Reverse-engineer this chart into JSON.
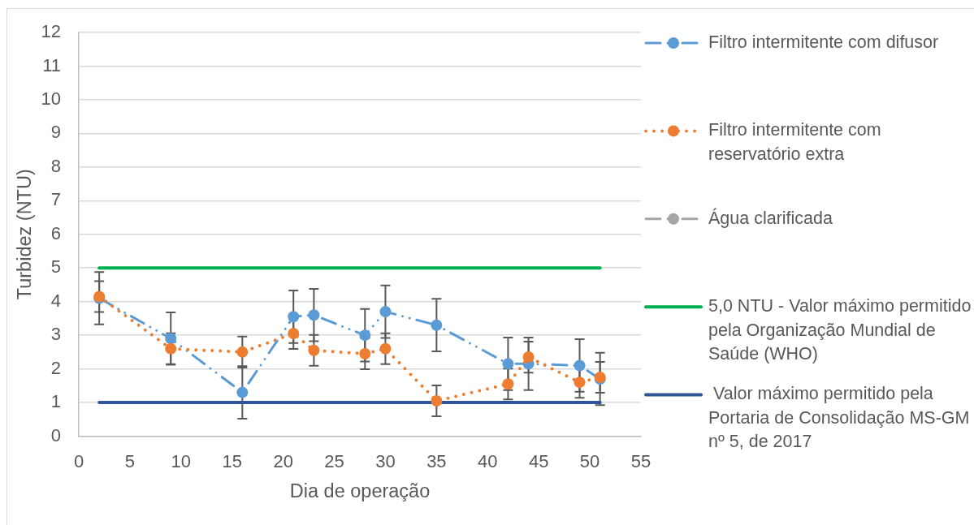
{
  "chart_data": {
    "type": "line",
    "xlabel": "Dia de operação",
    "ylabel": "Turbidez (NTU)",
    "x": [
      2,
      9,
      16,
      21,
      23,
      28,
      30,
      35,
      42,
      44,
      49,
      51
    ],
    "xlim": [
      0,
      55
    ],
    "xticks": [
      0,
      5,
      10,
      15,
      20,
      25,
      30,
      35,
      40,
      45,
      50,
      55
    ],
    "ylim": [
      0,
      12
    ],
    "yticks": [
      0,
      1,
      2,
      3,
      4,
      5,
      6,
      7,
      8,
      9,
      10,
      11,
      12
    ],
    "grid": "y",
    "legend": "right",
    "marker": "circle",
    "series": [
      {
        "name": "Filtro intermitente com difusor",
        "color": "#5b9bd5",
        "line_style": "dashed",
        "values": [
          4.1,
          2.9,
          1.3,
          3.55,
          3.6,
          3.0,
          3.7,
          3.3,
          2.15,
          2.15,
          2.1,
          1.7
        ],
        "errors": [
          0.78,
          0.78,
          0.78,
          0.78,
          0.78,
          0.78,
          0.78,
          0.78,
          0.78,
          0.78,
          0.78,
          0.78
        ]
      },
      {
        "name": "Filtro intermitente com reservatório extra",
        "color": "#ed7d31",
        "line_style": "dotted",
        "values": [
          4.15,
          2.6,
          2.5,
          3.05,
          2.55,
          2.45,
          2.6,
          1.05,
          1.55,
          2.35,
          1.6,
          1.75
        ],
        "errors": [
          0.46,
          0.46,
          0.46,
          0.46,
          0.46,
          0.46,
          0.46,
          0.46,
          0.46,
          0.46,
          0.46,
          0.46
        ]
      },
      {
        "name": "Água clarificada",
        "color": "#a5a5a5",
        "line_style": "dashed",
        "values": [
          null,
          null,
          null,
          null,
          null,
          null,
          null,
          null,
          null,
          null,
          null,
          null
        ]
      },
      {
        "name": "5,0 NTU - Valor máximo permitido pela Organização Mundial de Saúde (WHO)",
        "color": "#00b050",
        "line_style": "solid",
        "marker": "none",
        "values": [
          5,
          5,
          5,
          5,
          5,
          5,
          5,
          5,
          5,
          5,
          5,
          5
        ]
      },
      {
        "name": " Valor máximo permitido pela Portaria de Consolidação MS-GM nº 5, de 2017",
        "color": "#2f5597",
        "line_style": "solid",
        "marker": "none",
        "values": [
          1,
          1,
          1,
          1,
          1,
          1,
          1,
          1,
          1,
          1,
          1,
          1
        ]
      }
    ]
  }
}
